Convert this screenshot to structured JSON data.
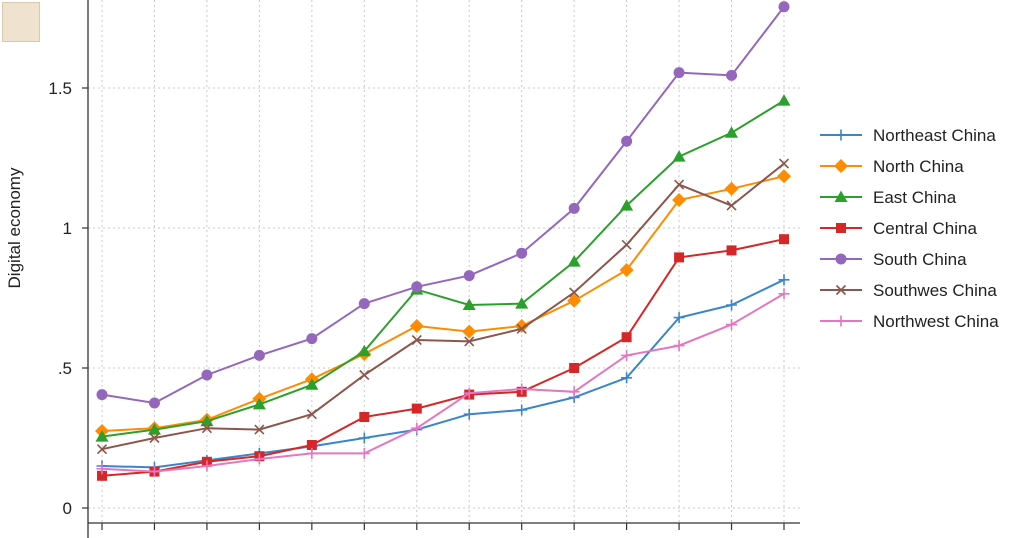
{
  "chart_data": {
    "type": "line",
    "ylabel": "Digital economy",
    "ylim": [
      0,
      1.8
    ],
    "yticks": [
      0,
      0.5,
      1,
      1.5
    ],
    "ytick_labels": [
      "0",
      ".5",
      "1",
      "1.5"
    ],
    "x": [
      1,
      2,
      3,
      4,
      5,
      6,
      7,
      8,
      9,
      10,
      11,
      12,
      13,
      14
    ],
    "grid": true,
    "legend_position": "right",
    "series": [
      {
        "name": "Northeast China",
        "color": "#3a86c8",
        "marker": "plus",
        "values": [
          0.15,
          0.145,
          0.17,
          0.195,
          0.22,
          0.25,
          0.28,
          0.335,
          0.35,
          0.395,
          0.465,
          0.68,
          0.725,
          0.815
        ]
      },
      {
        "name": "North China",
        "color": "#ff8c00",
        "marker": "diamond",
        "values": [
          0.275,
          0.285,
          0.315,
          0.39,
          0.46,
          0.55,
          0.65,
          0.63,
          0.65,
          0.74,
          0.85,
          1.1,
          1.14,
          1.185
        ]
      },
      {
        "name": "East China",
        "color": "#2ca02c",
        "marker": "triangle",
        "values": [
          0.255,
          0.28,
          0.31,
          0.37,
          0.44,
          0.56,
          0.78,
          0.725,
          0.73,
          0.88,
          1.08,
          1.255,
          1.34,
          1.455
        ]
      },
      {
        "name": "Central China",
        "color": "#d62728",
        "marker": "square",
        "values": [
          0.115,
          0.13,
          0.165,
          0.185,
          0.225,
          0.325,
          0.355,
          0.405,
          0.415,
          0.5,
          0.61,
          0.895,
          0.92,
          0.96
        ]
      },
      {
        "name": "South China",
        "color": "#9467bd",
        "marker": "circle",
        "values": [
          0.405,
          0.375,
          0.475,
          0.545,
          0.605,
          0.73,
          0.79,
          0.83,
          0.91,
          1.07,
          1.31,
          1.555,
          1.545,
          1.79
        ]
      },
      {
        "name": "Southwes China",
        "color": "#8c564b",
        "marker": "x",
        "values": [
          0.21,
          0.25,
          0.285,
          0.28,
          0.335,
          0.475,
          0.6,
          0.595,
          0.64,
          0.77,
          0.94,
          1.155,
          1.08,
          1.23
        ]
      },
      {
        "name": "Northwest China",
        "color": "#e377c2",
        "marker": "plus",
        "values": [
          0.14,
          0.13,
          0.15,
          0.175,
          0.195,
          0.195,
          0.285,
          0.41,
          0.425,
          0.415,
          0.545,
          0.58,
          0.655,
          0.765
        ]
      }
    ]
  }
}
